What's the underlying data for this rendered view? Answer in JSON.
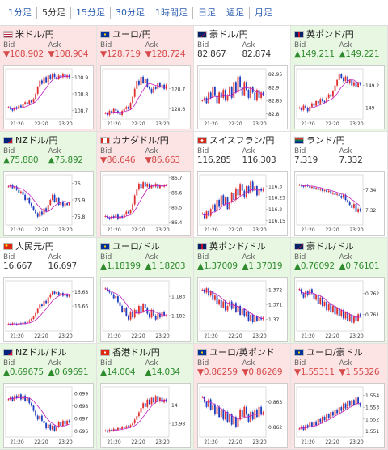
{
  "tabs": [
    "1分足",
    "5分足",
    "15分足",
    "30分足",
    "1時間足",
    "日足",
    "週足",
    "月足"
  ],
  "active_tab": 1,
  "bid_label": "Bid",
  "ask_label": "Ask",
  "colors": {
    "up_bg": "#e7f7e1",
    "down_bg": "#fde4e4",
    "up_text": "#2e8b2e",
    "down_text": "#d64a4a",
    "candle_up": "#e03030",
    "candle_down": "#2040c0",
    "ma": "#c020c0"
  },
  "pairs": [
    {
      "name": "米ドル/円",
      "dir": "down",
      "bid": "▼108.902",
      "ask": "▼108.904",
      "flags": [
        "us",
        "jp"
      ],
      "chart_data": {
        "type": "candlestick",
        "y_ticks": [
          "108.9",
          "108.8",
          "108.7"
        ],
        "x_ticks": [
          "21:20",
          "22:20",
          "23:20"
        ],
        "ylim": [
          108.65,
          108.95
        ],
        "close": [
          108.72,
          108.71,
          108.7,
          108.72,
          108.71,
          108.73,
          108.72,
          108.74,
          108.75,
          108.74,
          108.76,
          108.75,
          108.77,
          108.8,
          108.84,
          108.88,
          108.86,
          108.9,
          108.87,
          108.91,
          108.89,
          108.92,
          108.9,
          108.89,
          108.91,
          108.9,
          108.92,
          108.9,
          108.91,
          108.9
        ]
      }
    },
    {
      "name": "ユーロ/円",
      "dir": "down",
      "bid": "▼128.719",
      "ask": "▼128.724",
      "flags": [
        "eu",
        "jp"
      ],
      "chart_data": {
        "type": "candlestick",
        "y_ticks": [
          "128.7",
          "128.6"
        ],
        "x_ticks": [
          "21:20",
          "22:20",
          "23:20"
        ],
        "ylim": [
          128.55,
          128.8
        ],
        "close": [
          128.58,
          128.57,
          128.59,
          128.58,
          128.6,
          128.59,
          128.58,
          128.57,
          128.59,
          128.6,
          128.61,
          128.6,
          128.63,
          128.66,
          128.7,
          128.74,
          128.72,
          128.76,
          128.73,
          128.75,
          128.71,
          128.7,
          128.68,
          128.71,
          128.7,
          128.73,
          128.71,
          128.72,
          128.7,
          128.72
        ]
      }
    },
    {
      "name": "豪ドル/円",
      "dir": "flat",
      "bid": "82.867",
      "ask": "82.874",
      "flags": [
        "au",
        "jp"
      ],
      "chart_data": {
        "type": "candlestick",
        "y_ticks": [
          "82.95",
          "82.9",
          "82.85",
          "82.8"
        ],
        "x_ticks": [
          "21:20",
          "22:20",
          "23:20"
        ],
        "ylim": [
          82.78,
          82.97
        ],
        "close": [
          82.85,
          82.86,
          82.84,
          82.88,
          82.86,
          82.9,
          82.87,
          82.84,
          82.88,
          82.86,
          82.89,
          82.85,
          82.87,
          82.9,
          82.86,
          82.92,
          82.88,
          82.94,
          82.9,
          82.87,
          82.92,
          82.89,
          82.86,
          82.9,
          82.88,
          82.85,
          82.89,
          82.86,
          82.88,
          82.87
        ]
      }
    },
    {
      "name": "英ポンド/円",
      "dir": "up",
      "bid": "▲149.211",
      "ask": "▲149.221",
      "flags": [
        "gb",
        "jp"
      ],
      "chart_data": {
        "type": "candlestick",
        "y_ticks": [
          "149.2",
          "149"
        ],
        "x_ticks": [
          "21:20",
          "22:20",
          "23:20"
        ],
        "ylim": [
          148.9,
          149.35
        ],
        "close": [
          149.0,
          148.98,
          149.02,
          149.0,
          148.97,
          149.01,
          149.04,
          149.02,
          149.06,
          149.04,
          149.08,
          149.06,
          149.05,
          149.09,
          149.12,
          149.1,
          149.15,
          149.2,
          149.25,
          149.3,
          149.27,
          149.24,
          149.28,
          149.22,
          149.25,
          149.2,
          149.23,
          149.19,
          149.22,
          149.21
        ]
      }
    },
    {
      "name": "NZドル/円",
      "dir": "up",
      "bid": "▲75.880",
      "ask": "▲75.892",
      "flags": [
        "nz",
        "jp"
      ],
      "chart_data": {
        "type": "candlestick",
        "y_ticks": [
          "76",
          "75.9",
          "75.8"
        ],
        "x_ticks": [
          "21:20",
          "22:20",
          "23:20"
        ],
        "ylim": [
          75.75,
          76.05
        ],
        "close": [
          75.98,
          75.99,
          75.97,
          75.98,
          75.96,
          75.94,
          75.95,
          75.93,
          75.9,
          75.91,
          75.88,
          75.86,
          75.84,
          75.82,
          75.8,
          75.83,
          75.81,
          75.85,
          75.83,
          75.87,
          75.9,
          75.93,
          75.89,
          75.91,
          75.87,
          75.89,
          75.86,
          75.88,
          75.87,
          75.88
        ]
      }
    },
    {
      "name": "カナダドル/円",
      "dir": "down",
      "bid": "▼86.646",
      "ask": "▼86.663",
      "flags": [
        "ca",
        "jp"
      ],
      "chart_data": {
        "type": "candlestick",
        "y_ticks": [
          "86.7",
          "86.6",
          "86.5",
          "86.4"
        ],
        "x_ticks": [
          "21:20",
          "22:20",
          "23:20"
        ],
        "ylim": [
          86.38,
          86.72
        ],
        "close": [
          86.44,
          86.43,
          86.42,
          86.44,
          86.43,
          86.45,
          86.42,
          86.44,
          86.43,
          86.45,
          86.47,
          86.46,
          86.48,
          86.52,
          86.58,
          86.62,
          86.66,
          86.63,
          86.67,
          86.64,
          86.66,
          86.63,
          86.65,
          86.64,
          86.66,
          86.63,
          86.65,
          86.64,
          86.65,
          86.65
        ]
      }
    },
    {
      "name": "スイスフラン/円",
      "dir": "flat",
      "bid": "116.285",
      "ask": "116.303",
      "flags": [
        "ch",
        "jp"
      ],
      "chart_data": {
        "type": "candlestick",
        "y_ticks": [
          "116.3",
          "116.25",
          "116.2",
          "116.15"
        ],
        "x_ticks": [
          "21:20",
          "22:20",
          "23:20"
        ],
        "ylim": [
          116.13,
          116.35
        ],
        "close": [
          116.18,
          116.16,
          116.19,
          116.17,
          116.2,
          116.22,
          116.19,
          116.24,
          116.21,
          116.26,
          116.22,
          116.25,
          116.2,
          116.23,
          116.27,
          116.24,
          116.29,
          116.26,
          116.31,
          116.28,
          116.25,
          116.3,
          116.27,
          116.32,
          116.28,
          116.3,
          116.26,
          116.29,
          116.28,
          116.29
        ]
      }
    },
    {
      "name": "ランド/円",
      "dir": "flat",
      "bid": "7.319",
      "ask": "7.332",
      "flags": [
        "za",
        "jp"
      ],
      "chart_data": {
        "type": "candlestick",
        "y_ticks": [
          "7.34",
          "7.32"
        ],
        "x_ticks": [
          "21:20",
          "22:20",
          "23:20"
        ],
        "ylim": [
          7.305,
          7.355
        ],
        "close": [
          7.345,
          7.344,
          7.343,
          7.345,
          7.344,
          7.342,
          7.343,
          7.341,
          7.342,
          7.34,
          7.341,
          7.339,
          7.34,
          7.338,
          7.339,
          7.336,
          7.337,
          7.335,
          7.336,
          7.334,
          7.332,
          7.335,
          7.33,
          7.328,
          7.325,
          7.322,
          7.326,
          7.318,
          7.321,
          7.319
        ]
      }
    },
    {
      "name": "人民元/円",
      "dir": "flat",
      "bid": "16.667",
      "ask": "16.697",
      "flags": [
        "cn",
        "jp"
      ],
      "chart_data": {
        "type": "candlestick",
        "y_ticks": [
          "16.68",
          "16.66"
        ],
        "x_ticks": [
          "21:20",
          "22:20",
          "23:20"
        ],
        "ylim": [
          16.625,
          16.695
        ],
        "close": [
          16.635,
          16.634,
          16.636,
          16.635,
          16.634,
          16.636,
          16.635,
          16.637,
          16.636,
          16.638,
          16.64,
          16.642,
          16.645,
          16.65,
          16.656,
          16.662,
          16.66,
          16.667,
          16.664,
          16.672,
          16.676,
          16.68,
          16.677,
          16.679,
          16.675,
          16.678,
          16.674,
          16.676,
          16.673,
          16.675
        ]
      }
    },
    {
      "name": "ユーロ/ドル",
      "dir": "up",
      "bid": "▲1.18199",
      "ask": "▲1.18203",
      "flags": [
        "eu",
        "us"
      ],
      "chart_data": {
        "type": "candlestick",
        "y_ticks": [
          "1.183",
          "1.182"
        ],
        "x_ticks": [
          "21:20",
          "22:20",
          "23:20"
        ],
        "ylim": [
          1.1812,
          1.1838
        ],
        "close": [
          1.1834,
          1.1833,
          1.1832,
          1.1831,
          1.1829,
          1.183,
          1.1827,
          1.1825,
          1.1822,
          1.1824,
          1.182,
          1.1818,
          1.1822,
          1.1819,
          1.1823,
          1.1821,
          1.1825,
          1.1822,
          1.1826,
          1.1824,
          1.1821,
          1.1819,
          1.1823,
          1.182,
          1.1818,
          1.1821,
          1.1819,
          1.1822,
          1.182,
          1.182
        ]
      }
    },
    {
      "name": "英ポンド/ドル",
      "dir": "up",
      "bid": "▲1.37009",
      "ask": "▲1.37019",
      "flags": [
        "gb",
        "us"
      ],
      "chart_data": {
        "type": "candlestick",
        "y_ticks": [
          "1.372",
          "1.371",
          "1.37"
        ],
        "x_ticks": [
          "21:20",
          "22:20",
          "23:20"
        ],
        "ylim": [
          1.3692,
          1.3726
        ],
        "close": [
          1.372,
          1.3718,
          1.3721,
          1.3716,
          1.3719,
          1.3713,
          1.3716,
          1.371,
          1.3713,
          1.3708,
          1.3712,
          1.3706,
          1.3709,
          1.3712,
          1.3707,
          1.3711,
          1.3705,
          1.3709,
          1.3703,
          1.3707,
          1.3702,
          1.3705,
          1.3699,
          1.3703,
          1.3698,
          1.3702,
          1.3699,
          1.3701,
          1.37,
          1.3701
        ]
      }
    },
    {
      "name": "豪ドル/ドル",
      "dir": "up",
      "bid": "▲0.76092",
      "ask": "▲0.76101",
      "flags": [
        "au",
        "us"
      ],
      "chart_data": {
        "type": "candlestick",
        "y_ticks": [
          "0.762",
          "0.761"
        ],
        "x_ticks": [
          "21:20",
          "22:20",
          "23:20"
        ],
        "ylim": [
          0.7602,
          0.7626
        ],
        "close": [
          0.7622,
          0.762,
          0.7618,
          0.7621,
          0.7619,
          0.7622,
          0.762,
          0.7617,
          0.7619,
          0.7615,
          0.7618,
          0.7614,
          0.7616,
          0.7612,
          0.7615,
          0.7611,
          0.7614,
          0.761,
          0.7613,
          0.7609,
          0.7612,
          0.7608,
          0.7611,
          0.7607,
          0.761,
          0.7606,
          0.7609,
          0.7607,
          0.761,
          0.7609
        ]
      }
    },
    {
      "name": "NZドル/ドル",
      "dir": "up",
      "bid": "▲0.69675",
      "ask": "▲0.69691",
      "flags": [
        "nz",
        "us"
      ],
      "chart_data": {
        "type": "candlestick",
        "y_ticks": [
          "0.699",
          "0.698",
          "0.697",
          "0.696"
        ],
        "x_ticks": [
          "21:20",
          "22:20",
          "23:20"
        ],
        "ylim": [
          0.6955,
          0.6995
        ],
        "close": [
          0.6985,
          0.6987,
          0.6984,
          0.6988,
          0.6986,
          0.6989,
          0.6985,
          0.6988,
          0.6984,
          0.6986,
          0.6982,
          0.698,
          0.6976,
          0.6972,
          0.6969,
          0.6972,
          0.6968,
          0.6966,
          0.6962,
          0.6965,
          0.6961,
          0.6964,
          0.696,
          0.6963,
          0.6967,
          0.6964,
          0.6968,
          0.6965,
          0.6968,
          0.6967
        ]
      }
    },
    {
      "name": "香港ドル/円",
      "dir": "up",
      "bid": "▲14.004",
      "ask": "▲14.034",
      "flags": [
        "hk",
        "jp"
      ],
      "chart_data": {
        "type": "candlestick",
        "y_ticks": [
          "14",
          "13.98"
        ],
        "x_ticks": [
          "21:20",
          "22:20",
          "23:20"
        ],
        "ylim": [
          13.965,
          14.02
        ],
        "close": [
          13.972,
          13.971,
          13.973,
          13.972,
          13.974,
          13.973,
          13.975,
          13.974,
          13.976,
          13.975,
          13.977,
          13.976,
          13.978,
          13.98,
          13.984,
          13.988,
          13.992,
          13.997,
          14.002,
          13.998,
          14.006,
          14.001,
          14.008,
          14.003,
          14.01,
          14.004,
          14.008,
          14.003,
          14.006,
          14.004
        ]
      }
    },
    {
      "name": "ユーロ/英ポンド",
      "dir": "down",
      "bid": "▼0.86259",
      "ask": "▼0.86269",
      "flags": [
        "eu",
        "gb"
      ],
      "chart_data": {
        "type": "candlestick",
        "y_ticks": [
          "0.863",
          "0.862"
        ],
        "x_ticks": [
          "21:20",
          "22:20",
          "23:20"
        ],
        "ylim": [
          0.8616,
          0.8636
        ],
        "close": [
          0.8632,
          0.863,
          0.8628,
          0.8631,
          0.8627,
          0.8629,
          0.8625,
          0.8628,
          0.8624,
          0.8627,
          0.8623,
          0.8626,
          0.8622,
          0.8625,
          0.8621,
          0.8624,
          0.862,
          0.8623,
          0.8627,
          0.8624,
          0.8628,
          0.8625,
          0.8622,
          0.8626,
          0.8623,
          0.8627,
          0.8624,
          0.8628,
          0.8625,
          0.8626
        ]
      }
    },
    {
      "name": "ユーロ/豪ドル",
      "dir": "down",
      "bid": "▼1.55311",
      "ask": "▼1.55326",
      "flags": [
        "eu",
        "au"
      ],
      "chart_data": {
        "type": "candlestick",
        "y_ticks": [
          "1.554",
          "1.553",
          "1.552",
          "1.551"
        ],
        "x_ticks": [
          "21:20",
          "22:20",
          "23:20"
        ],
        "ylim": [
          1.5505,
          1.5547
        ],
        "close": [
          1.5512,
          1.5514,
          1.5511,
          1.5515,
          1.5513,
          1.5517,
          1.5514,
          1.5518,
          1.5515,
          1.552,
          1.5517,
          1.5522,
          1.5519,
          1.5524,
          1.5521,
          1.5526,
          1.5523,
          1.5528,
          1.5525,
          1.553,
          1.5527,
          1.5533,
          1.5529,
          1.5535,
          1.5531,
          1.5536,
          1.5532,
          1.5538,
          1.5533,
          1.5531
        ]
      }
    }
  ]
}
